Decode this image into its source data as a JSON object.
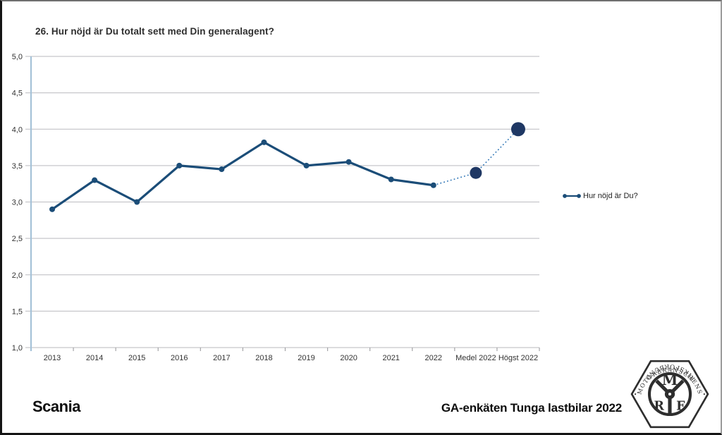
{
  "colors": {
    "line": "#1b4d78",
    "big_dot": "#1f3864",
    "dotted_line": "#2e75b6",
    "grid": "#c7c7cb",
    "tick_mark": "#a5a5a8",
    "axis_line": "#a5c2d8",
    "text": "#333333"
  },
  "chart": {
    "title": "26. Hur nöjd är Du totalt sett med Din generalagent?",
    "legend_label": "Hur nöjd är Du?"
  },
  "chart_data": {
    "type": "line",
    "title": "26. Hur nöjd är Du totalt sett med Din generalagent?",
    "categories": [
      "2013",
      "2014",
      "2015",
      "2016",
      "2017",
      "2018",
      "2019",
      "2020",
      "2021",
      "2022",
      "Medel 2022",
      "Högst 2022"
    ],
    "series": [
      {
        "name": "Hur nöjd är Du?",
        "values": [
          2.9,
          3.3,
          3.0,
          3.5,
          3.45,
          3.82,
          3.5,
          3.55,
          3.31,
          3.23,
          3.4,
          4.0
        ]
      }
    ],
    "ylim": [
      1.0,
      5.0
    ],
    "ytick_step": 0.5,
    "decimal_separator": ",",
    "grid": true,
    "legend_position": "right",
    "solid_points": 10,
    "big_point_indices": [
      10,
      11
    ],
    "notes": "Solid thick line 2013-2022; dotted thin line connects 2022 to the two large benchmark dots Medel 2022 and Högst 2022"
  },
  "footer": {
    "left_logo": "Scania",
    "right_text": "GA-enkäten Tunga lastbilar 2022",
    "mrf": {
      "top_text": "MOTORBRANSCHENS",
      "bottom_text": "RIKSFÖRBUND",
      "letters": [
        "M",
        "R",
        "F"
      ],
      "separator": "·"
    }
  }
}
